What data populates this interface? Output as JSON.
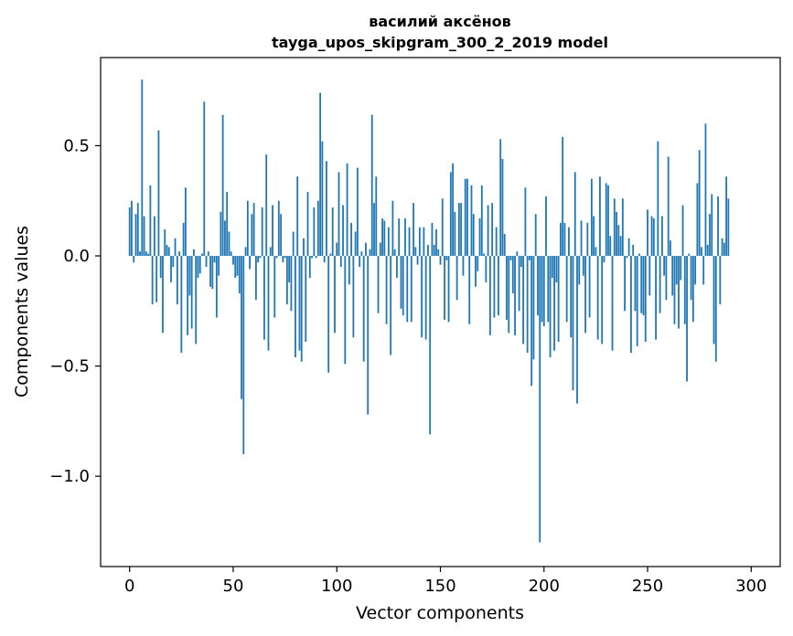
{
  "chart_data": {
    "type": "bar",
    "title_line1": "василий аксёнов",
    "title_line2": "tayga_upos_skipgram_300_2_2019 model",
    "xlabel": "Vector components",
    "ylabel": "Components values",
    "xlim": [
      -14,
      314
    ],
    "ylim": [
      -1.41,
      0.9
    ],
    "xticks": [
      0,
      50,
      100,
      150,
      200,
      250,
      300
    ],
    "xtick_labels": [
      "0",
      "50",
      "100",
      "150",
      "200",
      "250",
      "300"
    ],
    "yticks": [
      -1.0,
      -0.5,
      0.0,
      0.5
    ],
    "ytick_labels": [
      "−1.0",
      "−0.5",
      "0.0",
      "0.5"
    ],
    "bar_color": "#1f77b4",
    "values": [
      0.22,
      0.25,
      -0.03,
      0.19,
      0.24,
      0.02,
      0.8,
      0.18,
      0.02,
      0.01,
      0.32,
      -0.22,
      0.18,
      -0.21,
      0.57,
      -0.1,
      -0.35,
      0.12,
      0.05,
      0.04,
      -0.12,
      -0.05,
      0.08,
      -0.22,
      0.02,
      -0.44,
      0.15,
      0.31,
      -0.36,
      -0.18,
      -0.33,
      0.03,
      -0.4,
      -0.1,
      -0.08,
      0.01,
      0.7,
      -0.05,
      0.02,
      -0.14,
      -0.15,
      -0.03,
      -0.28,
      -0.09,
      0.2,
      0.64,
      0.16,
      0.29,
      0.11,
      0.02,
      -0.04,
      -0.1,
      -0.09,
      -0.17,
      -0.65,
      -0.9,
      0.04,
      0.25,
      -0.06,
      0.19,
      0.24,
      -0.2,
      -0.03,
      -0.01,
      0.22,
      -0.38,
      0.46,
      -0.43,
      0.04,
      0.23,
      -0.28,
      -0.01,
      0.25,
      0.19,
      -0.03,
      -0.01,
      -0.22,
      -0.12,
      -0.25,
      0.11,
      -0.46,
      0.36,
      -0.43,
      -0.48,
      0.08,
      -0.39,
      0.29,
      -0.1,
      -0.01,
      0.22,
      -0.01,
      0.25,
      0.74,
      0.52,
      -0.03,
      0.43,
      -0.53,
      0.01,
      0.22,
      -0.35,
      0.06,
      0.38,
      -0.05,
      0.23,
      -0.49,
      0.42,
      -0.13,
      0.15,
      -0.37,
      0.11,
      0.4,
      -0.05,
      0.02,
      -0.48,
      0.06,
      -0.72,
      0.03,
      0.64,
      0.24,
      0.36,
      -0.26,
      0.06,
      0.17,
      0.16,
      -0.31,
      0.13,
      -0.45,
      0.25,
      0.03,
      -0.1,
      0.17,
      -0.24,
      -0.27,
      0.17,
      -0.3,
      0.13,
      -0.3,
      0.24,
      0.04,
      -0.04,
      0.13,
      -0.37,
      0.13,
      -0.38,
      0.05,
      -0.81,
      0.15,
      0.05,
      0.12,
      0.03,
      -0.04,
      0.26,
      -0.29,
      -0.02,
      -0.3,
      0.38,
      0.42,
      0.2,
      -0.2,
      0.24,
      0.24,
      -0.09,
      0.35,
      0.35,
      -0.31,
      0.32,
      0.19,
      -0.14,
      -0.07,
      0.17,
      0.32,
      0.01,
      -0.12,
      0.23,
      -0.36,
      0.24,
      -0.28,
      0.13,
      -0.27,
      0.53,
      0.44,
      0.1,
      -0.29,
      -0.35,
      -0.02,
      -0.17,
      -0.36,
      0.02,
      -0.25,
      -0.05,
      -0.4,
      0.31,
      -0.44,
      -0.02,
      -0.59,
      -0.47,
      0.19,
      -0.27,
      -1.3,
      -0.3,
      -0.32,
      0.27,
      -0.3,
      -0.46,
      -0.1,
      -0.43,
      -0.12,
      -0.39,
      0.15,
      0.54,
      0.15,
      -0.3,
      0.13,
      -0.37,
      -0.61,
      0.38,
      -0.67,
      -0.13,
      0.16,
      -0.09,
      -0.35,
      0.15,
      -0.28,
      0.35,
      0.18,
      0.04,
      -0.38,
      0.36,
      -0.4,
      -0.03,
      0.33,
      0.32,
      0.09,
      -0.43,
      0.26,
      0.2,
      0.14,
      0.09,
      0.26,
      -0.25,
      -0.01,
      0.08,
      -0.44,
      0.05,
      -0.25,
      -0.41,
      0.01,
      -0.26,
      -0.27,
      -0.39,
      0.21,
      -0.18,
      0.18,
      0.17,
      -0.38,
      0.52,
      -0.26,
      0.18,
      -0.09,
      -0.2,
      0.45,
      0.07,
      -0.18,
      -0.31,
      -0.13,
      -0.33,
      -0.11,
      0.23,
      -0.31,
      -0.57,
      0.01,
      -0.2,
      -0.3,
      -0.13,
      0.33,
      0.48,
      0.04,
      -0.13,
      0.6,
      0.05,
      0.19,
      0.28,
      -0.4,
      -0.48,
      0.27,
      -0.22,
      0.08,
      0.06,
      0.36,
      0.26
    ]
  }
}
